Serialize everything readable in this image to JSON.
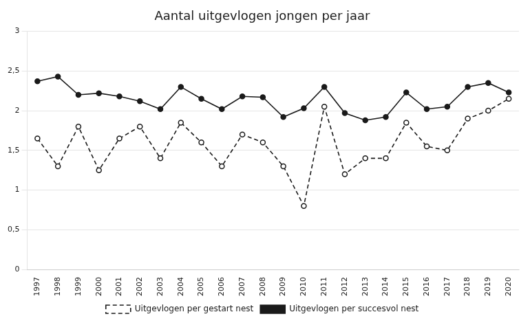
{
  "chart_data": {
    "type": "line",
    "title": "Aantal uitgevlogen jongen per jaar",
    "categories": [
      "1997",
      "1998",
      "1999",
      "2000",
      "2001",
      "2002",
      "2003",
      "2004",
      "2005",
      "2006",
      "2007",
      "2008",
      "2009",
      "2010",
      "2011",
      "2012",
      "2013",
      "2014",
      "2015",
      "2016",
      "2017",
      "2018",
      "2019",
      "2020"
    ],
    "series": [
      {
        "name": "Uitgevlogen per gestart nest",
        "color": "#1a1a1a",
        "line_style": "dashed",
        "marker": "circle_open",
        "values": [
          1.65,
          1.3,
          1.8,
          1.25,
          1.65,
          1.8,
          1.4,
          1.85,
          1.6,
          1.3,
          1.7,
          1.6,
          1.3,
          0.8,
          2.05,
          1.2,
          1.4,
          1.4,
          1.85,
          1.55,
          1.5,
          1.9,
          2.0,
          2.15
        ]
      },
      {
        "name": "Uitgevlogen per succesvol nest",
        "color": "#1a1a1a",
        "line_style": "solid",
        "marker": "circle",
        "values": [
          2.37,
          2.43,
          2.2,
          2.22,
          2.18,
          2.12,
          2.02,
          2.3,
          2.15,
          2.02,
          2.18,
          2.17,
          1.92,
          2.03,
          2.3,
          1.97,
          1.88,
          1.92,
          2.23,
          2.02,
          2.05,
          2.3,
          2.35,
          2.23
        ]
      }
    ],
    "ylim": [
      0,
      3
    ],
    "yticks": [
      0,
      {
        "value": 0.5,
        "label": "0,5"
      },
      1,
      {
        "value": 1.5,
        "label": "1,5"
      },
      2,
      {
        "value": 2.5,
        "label": "2,5"
      },
      3
    ],
    "grid": true,
    "legend": "bottom"
  }
}
